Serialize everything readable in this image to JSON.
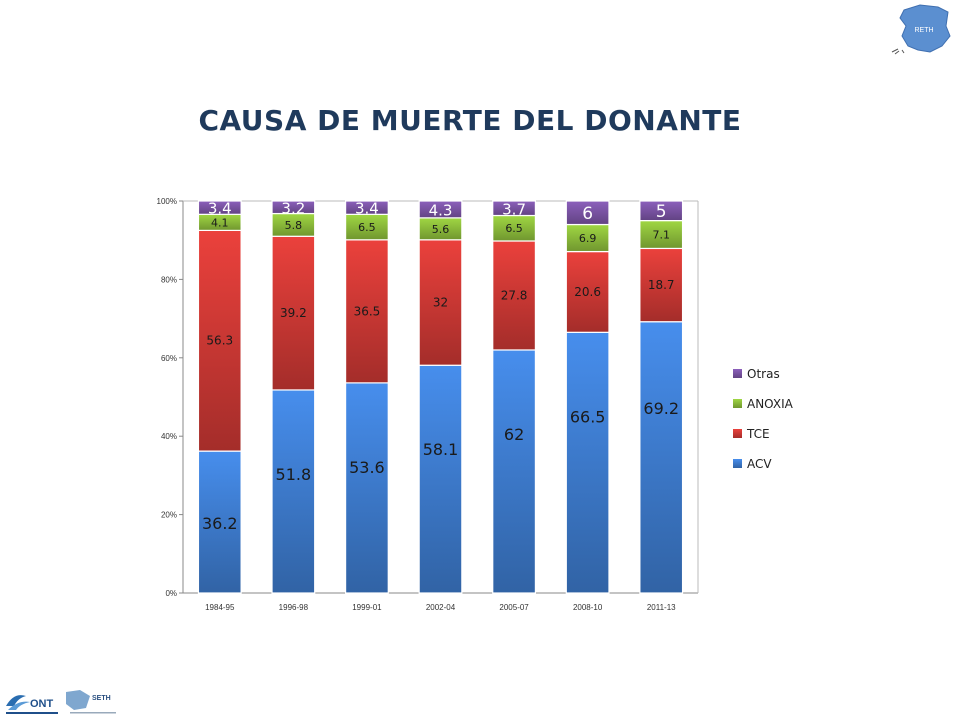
{
  "page": {
    "title": "CAUSA DE MUERTE DEL DONANTE",
    "logo_corner_text": "RETH",
    "logo_footer_left_text": "ONT",
    "logo_footer_right_text": "SETH"
  },
  "colors": {
    "title": "#1f3a5c",
    "ACV": "#3f7fd4",
    "TCE": "#d23a36",
    "ANOXIA": "#8fc03c",
    "Otras": "#7d56a8"
  },
  "chart_data": {
    "type": "bar",
    "stacked": true,
    "percent_stacked": true,
    "title": "",
    "categories": [
      "1984-95",
      "1996-98",
      "1999-01",
      "2002-04",
      "2005-07",
      "2008-10",
      "2011-13"
    ],
    "series": [
      {
        "name": "ACV",
        "values": [
          36.2,
          51.8,
          53.6,
          58.1,
          62,
          66.5,
          69.2
        ]
      },
      {
        "name": "TCE",
        "values": [
          56.3,
          39.2,
          36.5,
          32,
          27.8,
          20.6,
          18.7
        ]
      },
      {
        "name": "ANOXIA",
        "values": [
          4.1,
          5.8,
          6.5,
          5.6,
          6.5,
          6.9,
          7.1
        ]
      },
      {
        "name": "Otras",
        "values": [
          3.4,
          3.2,
          3.4,
          4.3,
          3.7,
          6,
          5
        ]
      }
    ],
    "data_labels": [
      [
        "36.2",
        "51.8",
        "53.6",
        "58.1",
        "62",
        "66.5",
        "69.2"
      ],
      [
        "56.3",
        "39.2",
        "36.5",
        "32",
        "27.8",
        "20.6",
        "18.7"
      ],
      [
        "4.1",
        "5.8",
        "6.5",
        "5.6",
        "6.5",
        "6.9",
        "7.1"
      ],
      [
        "3.4",
        "3.2",
        "3.4",
        "4.3",
        "3.7",
        "6",
        "5"
      ]
    ],
    "yticks": [
      "0%",
      "20%",
      "40%",
      "60%",
      "80%",
      "100%"
    ],
    "ylim": [
      0,
      100
    ],
    "legend": [
      "Otras",
      "ANOXIA",
      "TCE",
      "ACV"
    ],
    "legend_position": "right",
    "grid": false
  }
}
